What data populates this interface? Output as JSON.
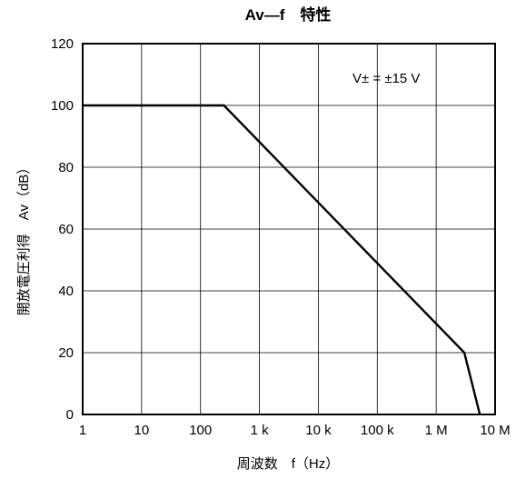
{
  "chart_data": {
    "type": "line",
    "title": "Av—f　特性",
    "xlabel": "周波数　f（Hz）",
    "ylabel": "開放電圧利得　Av（dB）",
    "xscale": "log",
    "xlim": [
      1,
      10000000
    ],
    "ylim": [
      0,
      120
    ],
    "grid": true,
    "x_ticks": [
      {
        "value": 1,
        "label": "1"
      },
      {
        "value": 10,
        "label": "10"
      },
      {
        "value": 100,
        "label": "100"
      },
      {
        "value": 1000,
        "label": "1 k"
      },
      {
        "value": 10000,
        "label": "10 k"
      },
      {
        "value": 100000,
        "label": "100 k"
      },
      {
        "value": 1000000,
        "label": "1 M"
      },
      {
        "value": 10000000,
        "label": "10 M"
      }
    ],
    "y_ticks": [
      {
        "value": 0,
        "label": "0"
      },
      {
        "value": 20,
        "label": "20"
      },
      {
        "value": 40,
        "label": "40"
      },
      {
        "value": 60,
        "label": "60"
      },
      {
        "value": 80,
        "label": "80"
      },
      {
        "value": 100,
        "label": "100"
      },
      {
        "value": 120,
        "label": "120"
      }
    ],
    "annotation": "V± = ±15 V",
    "series": [
      {
        "x": [
          1,
          250,
          3000000,
          5500000
        ],
        "y": [
          100,
          100,
          20,
          0
        ]
      }
    ]
  }
}
